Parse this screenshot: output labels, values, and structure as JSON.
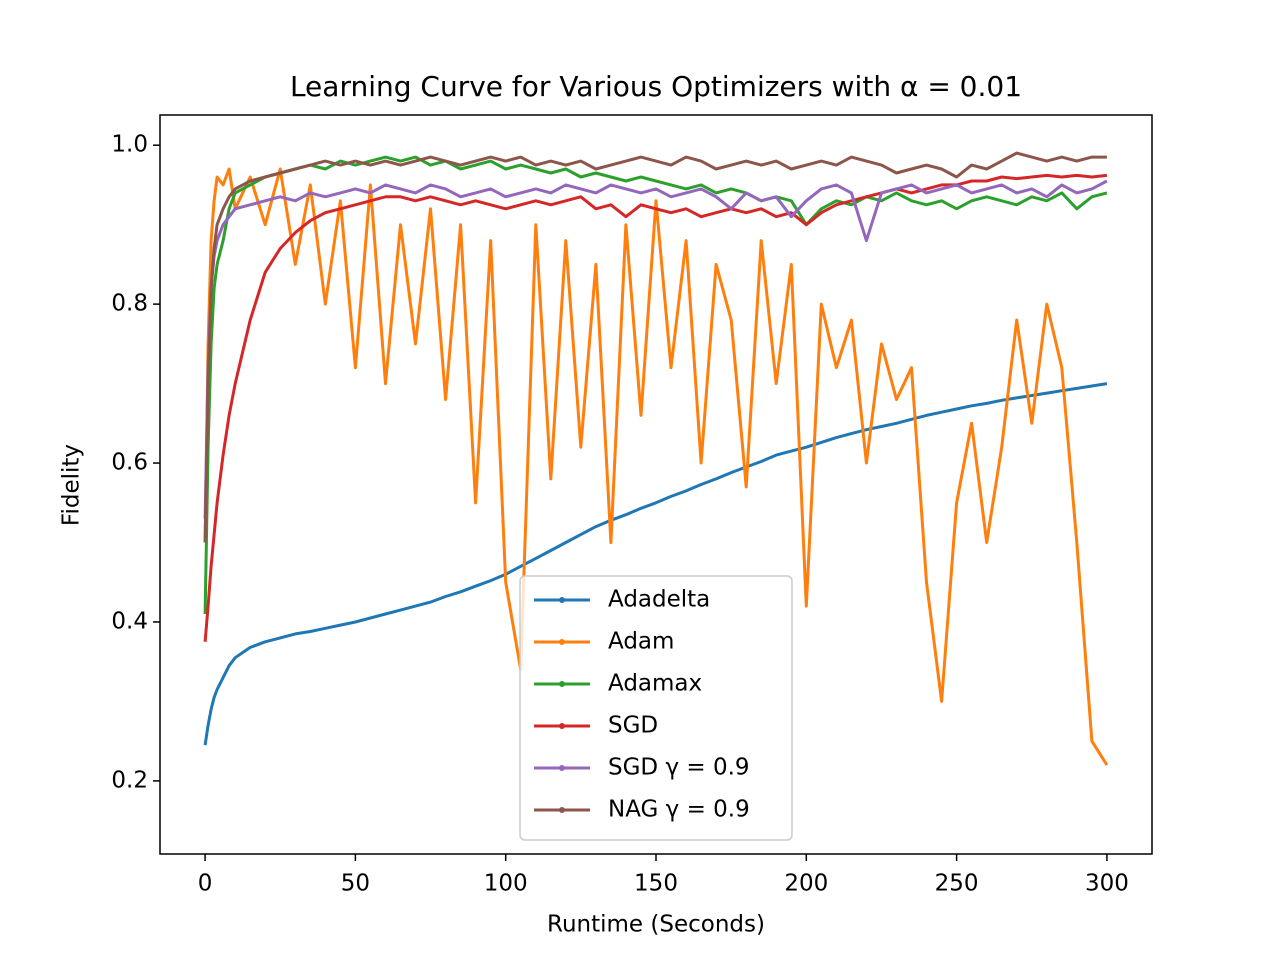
{
  "chart_data": {
    "type": "line",
    "title": "Learning Curve for Various Optimizers with α = 0.01",
    "xlabel": "Runtime (Seconds)",
    "ylabel": "Fidelity",
    "xlim": [
      -15,
      315
    ],
    "ylim": [
      0.108,
      1.038
    ],
    "xticks": [
      0,
      50,
      100,
      150,
      200,
      250,
      300
    ],
    "yticks": [
      0.2,
      0.4,
      0.6,
      0.8,
      {
        "value": 1,
        "label": "1.0"
      }
    ],
    "legend": "lower center",
    "x": [
      0,
      1,
      2,
      3,
      4,
      6,
      8,
      10,
      15,
      20,
      25,
      30,
      35,
      40,
      45,
      50,
      55,
      60,
      65,
      70,
      75,
      80,
      85,
      90,
      95,
      100,
      105,
      110,
      115,
      120,
      125,
      130,
      135,
      140,
      145,
      150,
      155,
      160,
      165,
      170,
      175,
      180,
      185,
      190,
      195,
      200,
      205,
      210,
      215,
      220,
      225,
      230,
      235,
      240,
      245,
      250,
      255,
      260,
      265,
      270,
      275,
      280,
      285,
      290,
      295,
      300
    ],
    "series": [
      {
        "name": "Adadelta",
        "color": "#1f77b4",
        "values": [
          0.245,
          0.27,
          0.29,
          0.305,
          0.315,
          0.33,
          0.345,
          0.355,
          0.368,
          0.375,
          0.38,
          0.385,
          0.388,
          0.392,
          0.396,
          0.4,
          0.405,
          0.41,
          0.415,
          0.42,
          0.425,
          0.432,
          0.438,
          0.445,
          0.452,
          0.46,
          0.47,
          0.48,
          0.49,
          0.5,
          0.51,
          0.52,
          0.528,
          0.535,
          0.543,
          0.55,
          0.558,
          0.565,
          0.573,
          0.58,
          0.588,
          0.595,
          0.602,
          0.61,
          0.615,
          0.62,
          0.626,
          0.632,
          0.637,
          0.642,
          0.646,
          0.65,
          0.655,
          0.66,
          0.664,
          0.668,
          0.672,
          0.675,
          0.679,
          0.682,
          0.685,
          0.688,
          0.691,
          0.694,
          0.697,
          0.7
        ]
      },
      {
        "name": "Adam",
        "color": "#ff7f0e",
        "values": [
          0.5,
          0.75,
          0.88,
          0.93,
          0.96,
          0.95,
          0.97,
          0.92,
          0.96,
          0.9,
          0.97,
          0.85,
          0.95,
          0.8,
          0.93,
          0.72,
          0.95,
          0.7,
          0.9,
          0.75,
          0.92,
          0.68,
          0.9,
          0.55,
          0.88,
          0.45,
          0.34,
          0.9,
          0.58,
          0.88,
          0.62,
          0.85,
          0.5,
          0.9,
          0.66,
          0.93,
          0.72,
          0.88,
          0.6,
          0.85,
          0.78,
          0.57,
          0.88,
          0.7,
          0.85,
          0.42,
          0.8,
          0.72,
          0.78,
          0.6,
          0.75,
          0.68,
          0.72,
          0.45,
          0.3,
          0.55,
          0.65,
          0.5,
          0.62,
          0.78,
          0.65,
          0.8,
          0.72,
          0.5,
          0.25,
          0.22
        ]
      },
      {
        "name": "Adamax",
        "color": "#2ca02c",
        "values": [
          0.41,
          0.62,
          0.75,
          0.82,
          0.85,
          0.88,
          0.92,
          0.94,
          0.95,
          0.96,
          0.965,
          0.97,
          0.975,
          0.97,
          0.98,
          0.975,
          0.98,
          0.985,
          0.98,
          0.985,
          0.975,
          0.98,
          0.97,
          0.975,
          0.98,
          0.97,
          0.975,
          0.97,
          0.965,
          0.97,
          0.96,
          0.965,
          0.96,
          0.955,
          0.96,
          0.955,
          0.95,
          0.945,
          0.95,
          0.94,
          0.945,
          0.94,
          0.93,
          0.935,
          0.93,
          0.9,
          0.92,
          0.93,
          0.925,
          0.935,
          0.93,
          0.94,
          0.93,
          0.925,
          0.93,
          0.92,
          0.93,
          0.935,
          0.93,
          0.925,
          0.935,
          0.93,
          0.94,
          0.92,
          0.935,
          0.94
        ]
      },
      {
        "name": "SGD",
        "color": "#d62728",
        "values": [
          0.375,
          0.42,
          0.47,
          0.51,
          0.55,
          0.61,
          0.66,
          0.7,
          0.78,
          0.84,
          0.87,
          0.89,
          0.905,
          0.915,
          0.92,
          0.925,
          0.93,
          0.935,
          0.935,
          0.93,
          0.935,
          0.93,
          0.925,
          0.93,
          0.925,
          0.92,
          0.925,
          0.93,
          0.925,
          0.93,
          0.935,
          0.92,
          0.925,
          0.91,
          0.925,
          0.92,
          0.915,
          0.92,
          0.91,
          0.915,
          0.92,
          0.915,
          0.92,
          0.91,
          0.915,
          0.9,
          0.915,
          0.925,
          0.93,
          0.935,
          0.94,
          0.945,
          0.94,
          0.945,
          0.95,
          0.95,
          0.955,
          0.955,
          0.96,
          0.958,
          0.96,
          0.962,
          0.96,
          0.962,
          0.96,
          0.962
        ]
      },
      {
        "name": "SGD γ = 0.9",
        "color": "#9467bd",
        "values": [
          0.53,
          0.72,
          0.82,
          0.86,
          0.88,
          0.9,
          0.91,
          0.92,
          0.925,
          0.93,
          0.935,
          0.93,
          0.94,
          0.935,
          0.94,
          0.945,
          0.94,
          0.95,
          0.945,
          0.94,
          0.95,
          0.945,
          0.935,
          0.94,
          0.945,
          0.935,
          0.94,
          0.945,
          0.94,
          0.95,
          0.945,
          0.94,
          0.95,
          0.945,
          0.94,
          0.945,
          0.935,
          0.94,
          0.945,
          0.935,
          0.92,
          0.94,
          0.93,
          0.935,
          0.91,
          0.93,
          0.945,
          0.95,
          0.94,
          0.88,
          0.94,
          0.945,
          0.95,
          0.94,
          0.945,
          0.95,
          0.94,
          0.945,
          0.95,
          0.94,
          0.945,
          0.935,
          0.95,
          0.94,
          0.945,
          0.955
        ]
      },
      {
        "name": "NAG γ = 0.9",
        "color": "#8c564b",
        "values": [
          0.5,
          0.7,
          0.82,
          0.87,
          0.9,
          0.92,
          0.935,
          0.945,
          0.955,
          0.96,
          0.965,
          0.97,
          0.975,
          0.98,
          0.975,
          0.98,
          0.975,
          0.98,
          0.975,
          0.98,
          0.985,
          0.98,
          0.975,
          0.98,
          0.985,
          0.98,
          0.985,
          0.975,
          0.98,
          0.975,
          0.98,
          0.97,
          0.975,
          0.98,
          0.985,
          0.98,
          0.975,
          0.985,
          0.98,
          0.97,
          0.975,
          0.98,
          0.975,
          0.98,
          0.97,
          0.975,
          0.98,
          0.975,
          0.985,
          0.98,
          0.975,
          0.965,
          0.97,
          0.975,
          0.97,
          0.96,
          0.975,
          0.97,
          0.98,
          0.99,
          0.985,
          0.98,
          0.985,
          0.98,
          0.985,
          0.985
        ]
      }
    ]
  }
}
